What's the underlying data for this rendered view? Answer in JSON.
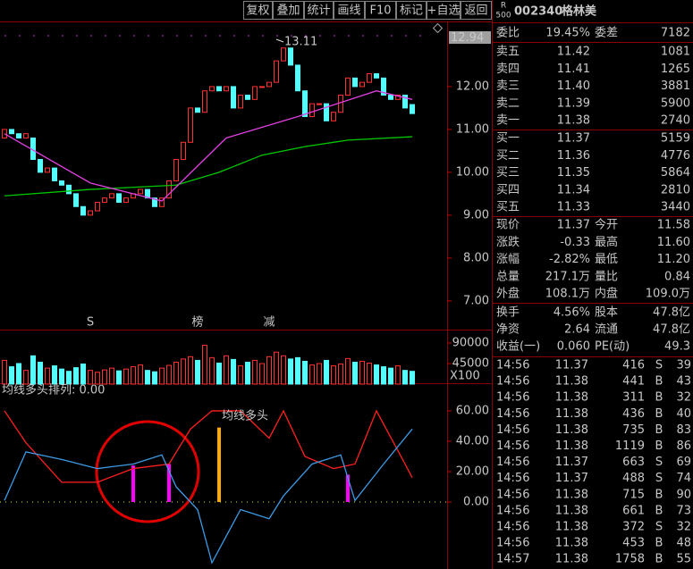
{
  "toolbar": [
    "复权",
    "叠加",
    "统计",
    "画线",
    "F10",
    "标记",
    "+自选",
    "返回"
  ],
  "stock": {
    "badge_top": "R",
    "badge_bottom": "500",
    "code": "002340",
    "name": "格林美"
  },
  "order_book": {
    "ratio_label": "委比",
    "ratio": "19.45%",
    "diff_label": "委差",
    "diff": "7182",
    "asks": [
      {
        "label": "卖五",
        "price": "11.42",
        "volume": "1081"
      },
      {
        "label": "卖四",
        "price": "11.41",
        "volume": "1265"
      },
      {
        "label": "卖三",
        "price": "11.40",
        "volume": "3881"
      },
      {
        "label": "卖二",
        "price": "11.39",
        "volume": "5900"
      },
      {
        "label": "卖一",
        "price": "11.38",
        "volume": "2740"
      }
    ],
    "bids": [
      {
        "label": "买一",
        "price": "11.37",
        "volume": "5159"
      },
      {
        "label": "买二",
        "price": "11.36",
        "volume": "4776"
      },
      {
        "label": "买三",
        "price": "11.35",
        "volume": "5864"
      },
      {
        "label": "买四",
        "price": "11.34",
        "volume": "2810"
      },
      {
        "label": "买五",
        "price": "11.33",
        "volume": "3440"
      }
    ]
  },
  "quote": [
    [
      {
        "label": "现价",
        "value": "11.37",
        "color": "#00e600"
      },
      {
        "label": "今开",
        "value": "11.58",
        "color": "#00e600"
      }
    ],
    [
      {
        "label": "涨跌",
        "value": "-0.33",
        "color": "#00e600"
      },
      {
        "label": "最高",
        "value": "11.60",
        "color": "#00e600"
      }
    ],
    [
      {
        "label": "涨幅",
        "value": "-2.82%",
        "color": "#00e600"
      },
      {
        "label": "最低",
        "value": "11.20",
        "color": "#00e600"
      }
    ],
    [
      {
        "label": "总量",
        "value": "217.1万",
        "color": "#e8e800"
      },
      {
        "label": "量比",
        "value": "0.84",
        "color": "#e8e800"
      }
    ],
    [
      {
        "label": "外盘",
        "value": "108.1万",
        "color": "#ff3232"
      },
      {
        "label": "内盘",
        "value": "109.0万",
        "color": "#00e600"
      }
    ]
  ],
  "fundamentals": [
    [
      {
        "label": "换手",
        "value": "4.56%"
      },
      {
        "label": "股本",
        "value": "47.8亿"
      }
    ],
    [
      {
        "label": "净资",
        "value": "2.64"
      },
      {
        "label": "流通",
        "value": "47.8亿"
      }
    ],
    [
      {
        "label": "收益(一)",
        "value": "0.060"
      },
      {
        "label": "PE(动)",
        "value": "49.3"
      }
    ]
  ],
  "ticks": [
    {
      "time": "14:56",
      "price": "11.37",
      "volume": "416",
      "side": "S",
      "count": "39"
    },
    {
      "time": "14:56",
      "price": "11.38",
      "volume": "441",
      "side": "B",
      "count": "43"
    },
    {
      "time": "14:56",
      "price": "11.38",
      "volume": "311",
      "side": "B",
      "count": "32"
    },
    {
      "time": "14:56",
      "price": "11.38",
      "volume": "436",
      "side": "B",
      "count": "40"
    },
    {
      "time": "14:56",
      "price": "11.38",
      "volume": "735",
      "side": "B",
      "count": "83"
    },
    {
      "time": "14:56",
      "price": "11.38",
      "volume": "1119",
      "side": "B",
      "count": "86"
    },
    {
      "time": "14:56",
      "price": "11.37",
      "volume": "663",
      "side": "S",
      "count": "69"
    },
    {
      "time": "14:56",
      "price": "11.37",
      "volume": "488",
      "side": "S",
      "count": "74"
    },
    {
      "time": "14:56",
      "price": "11.38",
      "volume": "715",
      "side": "B",
      "count": "90"
    },
    {
      "time": "14:56",
      "price": "11.38",
      "volume": "661",
      "side": "B",
      "count": "73"
    },
    {
      "time": "14:56",
      "price": "11.38",
      "volume": "372",
      "side": "S",
      "count": "32"
    },
    {
      "time": "14:56",
      "price": "11.38",
      "volume": "453",
      "side": "B",
      "count": "48"
    },
    {
      "time": "14:57",
      "price": "11.38",
      "volume": "1758",
      "side": "B",
      "count": "55"
    }
  ],
  "chart_data": [
    {
      "type": "candlestick",
      "ylim": [
        6.35,
        13.52
      ],
      "yticks": [
        {
          "value": 7,
          "label": "7.00"
        },
        {
          "value": 8,
          "label": "8.00"
        },
        {
          "value": 9,
          "label": "9.00"
        },
        {
          "value": 10,
          "label": "10.00"
        },
        {
          "value": 11,
          "label": "11.00"
        },
        {
          "value": 12,
          "label": "12.00"
        }
      ],
      "cursor_label": "12.94",
      "high_label": "13.11",
      "up_color": "#ff3232",
      "down_color": "#54fcfc",
      "open": [
        10.8,
        11.0,
        10.9,
        10.8,
        10.8,
        10.3,
        10.0,
        10.1,
        9.8,
        9.7,
        9.5,
        9.2,
        9.0,
        9.1,
        9.3,
        9.4,
        9.5,
        9.3,
        9.4,
        9.5,
        9.6,
        9.4,
        9.2,
        9.4,
        9.8,
        10.3,
        10.7,
        11.5,
        11.4,
        11.9,
        12.0,
        11.9,
        12.0,
        11.5,
        11.8,
        11.7,
        12.0,
        12.0,
        12.1,
        12.6,
        12.9,
        12.5,
        11.9,
        11.3,
        11.6,
        11.6,
        11.2,
        11.4,
        11.8,
        12.2,
        12.0,
        12.1,
        12.3,
        12.2,
        11.8,
        11.7,
        11.8,
        11.58
      ],
      "close": [
        11.0,
        10.9,
        10.8,
        10.9,
        10.3,
        10.0,
        10.1,
        9.8,
        9.7,
        9.5,
        9.2,
        9.0,
        9.1,
        9.3,
        9.4,
        9.5,
        9.3,
        9.4,
        9.5,
        9.6,
        9.4,
        9.2,
        9.4,
        9.8,
        10.3,
        10.7,
        11.5,
        11.4,
        11.9,
        12.0,
        11.9,
        12.0,
        11.5,
        11.8,
        11.7,
        12.0,
        12.0,
        12.1,
        12.6,
        12.9,
        12.5,
        11.9,
        11.3,
        11.6,
        11.6,
        11.2,
        11.4,
        11.8,
        12.2,
        12.0,
        12.1,
        12.3,
        12.2,
        11.8,
        11.7,
        11.8,
        11.5,
        11.37
      ],
      "series": [
        {
          "color": "#00c800",
          "x": [
            0,
            12,
            24,
            30,
            36,
            42,
            48,
            57
          ],
          "values": [
            9.45,
            9.6,
            9.7,
            10.0,
            10.4,
            10.6,
            10.75,
            10.83
          ]
        },
        {
          "color": "#e040e0",
          "x": [
            0,
            12,
            22,
            31,
            41,
            52,
            57
          ],
          "values": [
            10.9,
            9.75,
            9.33,
            10.8,
            11.3,
            11.9,
            11.7
          ]
        }
      ],
      "signals": [
        {
          "x": 12,
          "text": "S",
          "color": "#ff3232"
        },
        {
          "x": 27,
          "text": "榜",
          "color": "#ff9900"
        },
        {
          "x": 37,
          "text": "减",
          "color": "#00c800"
        }
      ]
    },
    {
      "type": "bar",
      "ylim": [
        0,
        117400
      ],
      "yticks": [
        45000,
        90000
      ],
      "unit_label": "X100",
      "values": [
        52000,
        38000,
        45000,
        30000,
        62000,
        48000,
        35000,
        40000,
        33000,
        28000,
        36000,
        44000,
        30000,
        26000,
        31000,
        35000,
        29000,
        33000,
        38000,
        42000,
        30000,
        27000,
        35000,
        41000,
        48000,
        55000,
        60000,
        52000,
        85000,
        58000,
        46000,
        62000,
        54000,
        40000,
        48000,
        52000,
        45000,
        60000,
        70000,
        62000,
        55000,
        58000,
        50000,
        42000,
        45000,
        52000,
        40000,
        44000,
        56000,
        48000,
        50000,
        46000,
        42000,
        38000,
        35000,
        40000,
        30000,
        28000
      ]
    },
    {
      "type": "line",
      "title": "均线多头排列: 0.00",
      "annotation": "均线多头",
      "ylim": [
        -44.1,
        77.6
      ],
      "yticks": [
        {
          "value": 0,
          "label": "0.00"
        },
        {
          "value": 20,
          "label": "20.00"
        },
        {
          "value": 40,
          "label": "40.00"
        },
        {
          "value": 60,
          "label": "60.00"
        }
      ],
      "series": [
        {
          "color": "#ff2020",
          "x": [
            0,
            3,
            8,
            13,
            18,
            23,
            26,
            29,
            33,
            37,
            39,
            42,
            46,
            49,
            52,
            56,
            57
          ],
          "values": [
            60,
            39,
            13,
            13,
            22,
            25,
            48,
            60,
            60,
            42,
            60,
            30,
            22,
            25,
            60,
            25,
            16
          ]
        },
        {
          "color": "#3c9be6",
          "x": [
            0,
            3,
            8,
            13,
            18,
            22,
            24,
            27,
            29,
            33,
            37,
            39,
            43,
            47,
            49,
            53,
            57
          ],
          "values": [
            1,
            33,
            28,
            22,
            25,
            31,
            10,
            -5,
            -40,
            -5,
            -11,
            4,
            25,
            31,
            1,
            25,
            48
          ]
        }
      ],
      "bars_x": [
        18,
        23,
        30,
        48
      ],
      "bars_values": [
        24,
        25,
        49,
        18
      ],
      "bar_colors": [
        "#ff00ff",
        "#ff00ff",
        "#ffaa00",
        "#ff00ff"
      ]
    }
  ]
}
